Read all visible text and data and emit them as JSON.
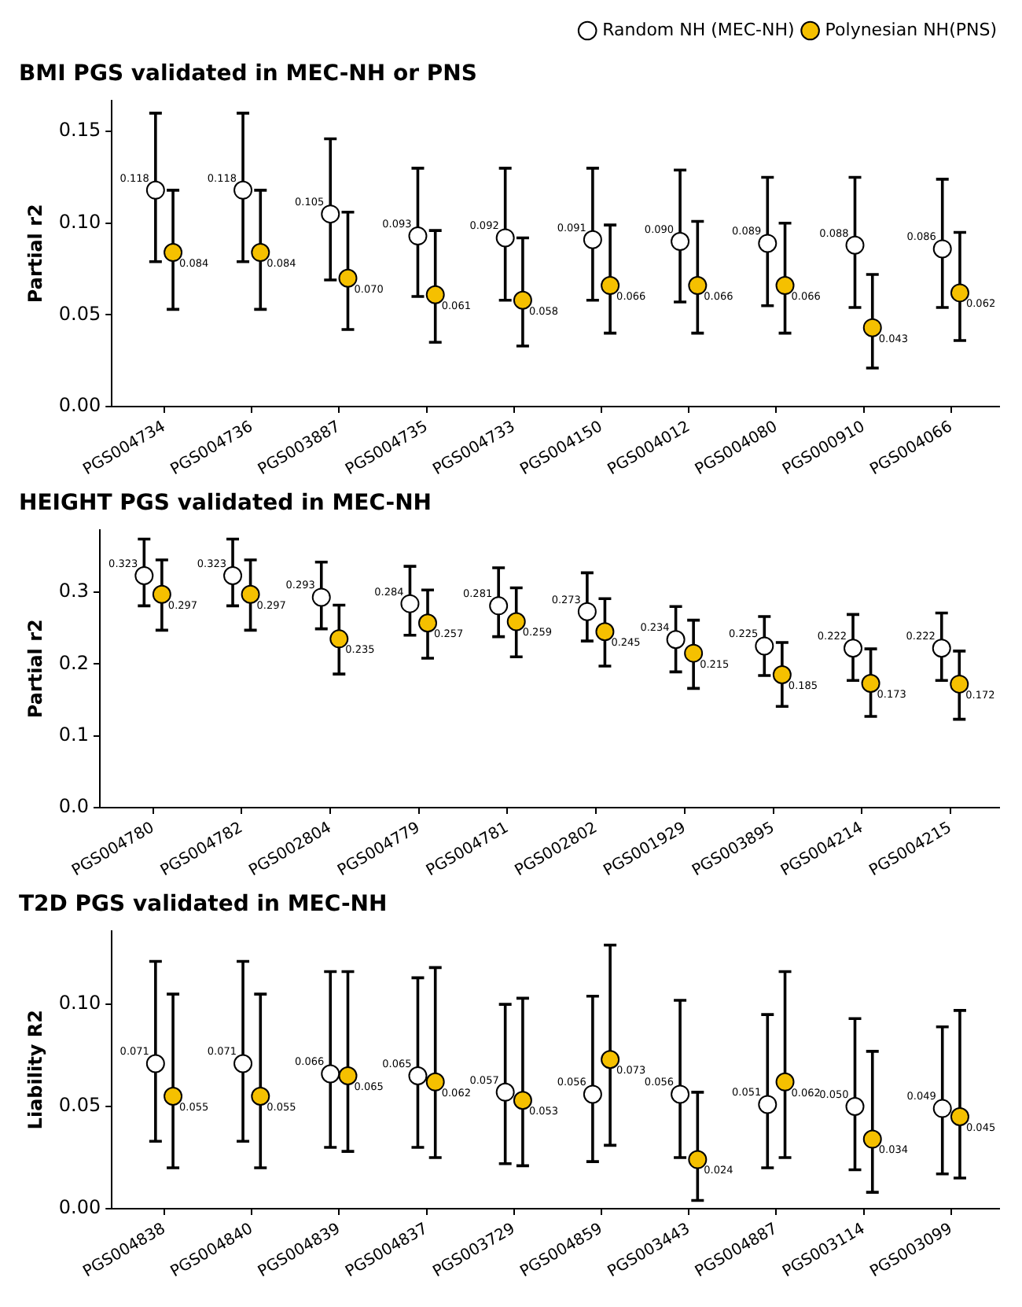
{
  "chart_data": [
    {
      "type": "scatter",
      "title": "BMI PGS validated in MEC-NH or PNS",
      "ylabel": "Partial r2",
      "legend": "top right",
      "grid": false,
      "marker": "circle",
      "categories": [
        "PGS004734",
        "PGS004736",
        "PGS003887",
        "PGS004735",
        "PGS004733",
        "PGS004150",
        "PGS004012",
        "PGS004080",
        "PGS000910",
        "PGS004066"
      ],
      "ylim": [
        0,
        0.167
      ],
      "yticks": [
        {
          "value": 0,
          "label": "0.00"
        },
        {
          "value": 0.05,
          "label": "0.05"
        },
        {
          "value": 0.1,
          "label": "0.10"
        },
        {
          "value": 0.15,
          "label": "0.15"
        }
      ],
      "series": [
        {
          "name": "Random NH (MEC-NH)",
          "color": "#ffffff",
          "values": [
            0.118,
            0.118,
            0.105,
            0.093,
            0.092,
            0.091,
            0.09,
            0.089,
            0.088,
            0.086
          ],
          "value_labels": [
            "0.118",
            "0.118",
            "0.105",
            "0.093",
            "0.092",
            "0.091",
            "0.090",
            "0.089",
            "0.088",
            "0.086"
          ],
          "errors": [
            [
              0.079,
              0.16
            ],
            [
              0.079,
              0.16
            ],
            [
              0.069,
              0.146
            ],
            [
              0.06,
              0.13
            ],
            [
              0.058,
              0.13
            ],
            [
              0.058,
              0.13
            ],
            [
              0.057,
              0.129
            ],
            [
              0.055,
              0.125
            ],
            [
              0.054,
              0.125
            ],
            [
              0.054,
              0.124
            ]
          ]
        },
        {
          "name": "Polynesian NH(PNS)",
          "color": "#f5c000",
          "values": [
            0.084,
            0.084,
            0.07,
            0.061,
            0.058,
            0.066,
            0.066,
            0.066,
            0.043,
            0.062
          ],
          "value_labels": [
            "0.084",
            "0.084",
            "0.070",
            "0.061",
            "0.058",
            "0.066",
            "0.066",
            "0.066",
            "0.043",
            "0.062"
          ],
          "errors": [
            [
              0.053,
              0.118
            ],
            [
              0.053,
              0.118
            ],
            [
              0.042,
              0.106
            ],
            [
              0.035,
              0.096
            ],
            [
              0.033,
              0.092
            ],
            [
              0.04,
              0.099
            ],
            [
              0.04,
              0.101
            ],
            [
              0.04,
              0.1
            ],
            [
              0.021,
              0.072
            ],
            [
              0.036,
              0.095
            ]
          ]
        }
      ]
    },
    {
      "type": "scatter",
      "title": "HEIGHT PGS validated in MEC-NH",
      "ylabel": "Partial r2",
      "grid": false,
      "marker": "circle",
      "categories": [
        "PGS004780",
        "PGS004782",
        "PGS002804",
        "PGS004779",
        "PGS004781",
        "PGS002802",
        "PGS001929",
        "PGS003895",
        "PGS004214",
        "PGS004215"
      ],
      "ylim": [
        0,
        0.387
      ],
      "yticks": [
        {
          "value": 0,
          "label": "0.0"
        },
        {
          "value": 0.1,
          "label": "0.1"
        },
        {
          "value": 0.2,
          "label": "0.2"
        },
        {
          "value": 0.3,
          "label": "0.3"
        }
      ],
      "series": [
        {
          "color": "#ffffff",
          "values": [
            0.323,
            0.323,
            0.293,
            0.284,
            0.281,
            0.273,
            0.234,
            0.225,
            0.222,
            0.222
          ],
          "value_labels": [
            "0.323",
            "0.323",
            "0.293",
            "0.284",
            "0.281",
            "0.273",
            "0.234",
            "0.225",
            "0.222",
            "0.222"
          ],
          "errors": [
            [
              0.281,
              0.374
            ],
            [
              0.281,
              0.374
            ],
            [
              0.249,
              0.342
            ],
            [
              0.24,
              0.336
            ],
            [
              0.238,
              0.334
            ],
            [
              0.232,
              0.327
            ],
            [
              0.189,
              0.28
            ],
            [
              0.184,
              0.266
            ],
            [
              0.177,
              0.269
            ],
            [
              0.177,
              0.271
            ]
          ]
        },
        {
          "color": "#f5c000",
          "values": [
            0.297,
            0.297,
            0.235,
            0.257,
            0.259,
            0.245,
            0.215,
            0.185,
            0.173,
            0.172
          ],
          "value_labels": [
            "0.297",
            "0.297",
            "0.235",
            "0.257",
            "0.259",
            "0.245",
            "0.215",
            "0.185",
            "0.173",
            "0.172"
          ],
          "errors": [
            [
              0.247,
              0.345
            ],
            [
              0.247,
              0.345
            ],
            [
              0.186,
              0.282
            ],
            [
              0.208,
              0.303
            ],
            [
              0.21,
              0.306
            ],
            [
              0.197,
              0.291
            ],
            [
              0.166,
              0.261
            ],
            [
              0.141,
              0.23
            ],
            [
              0.127,
              0.221
            ],
            [
              0.123,
              0.218
            ]
          ]
        }
      ]
    },
    {
      "type": "scatter",
      "title": "T2D PGS validated in MEC-NH",
      "ylabel": "Liability R2",
      "grid": false,
      "marker": "circle",
      "categories": [
        "PGS004838",
        "PGS004840",
        "PGS004839",
        "PGS004837",
        "PGS003729",
        "PGS004859",
        "PGS003443",
        "PGS004887",
        "PGS003114",
        "PGS003099"
      ],
      "ylim": [
        0,
        0.136
      ],
      "yticks": [
        {
          "value": 0,
          "label": "0.00"
        },
        {
          "value": 0.05,
          "label": "0.05"
        },
        {
          "value": 0.1,
          "label": "0.10"
        }
      ],
      "series": [
        {
          "color": "#ffffff",
          "values": [
            0.071,
            0.071,
            0.066,
            0.065,
            0.057,
            0.056,
            0.056,
            0.051,
            0.05,
            0.049
          ],
          "value_labels": [
            "0.071",
            "0.071",
            "0.066",
            "0.065",
            "0.057",
            "0.056",
            "0.056",
            "0.051",
            "0.050",
            "0.049"
          ],
          "errors": [
            [
              0.033,
              0.121
            ],
            [
              0.033,
              0.121
            ],
            [
              0.03,
              0.116
            ],
            [
              0.03,
              0.113
            ],
            [
              0.022,
              0.1
            ],
            [
              0.023,
              0.104
            ],
            [
              0.025,
              0.102
            ],
            [
              0.02,
              0.095
            ],
            [
              0.019,
              0.093
            ],
            [
              0.017,
              0.089
            ]
          ]
        },
        {
          "color": "#f5c000",
          "values": [
            0.055,
            0.055,
            0.065,
            0.062,
            0.053,
            0.073,
            0.024,
            0.062,
            0.034,
            0.045
          ],
          "value_labels": [
            "0.055",
            "0.055",
            "0.065",
            "0.062",
            "0.053",
            "0.073",
            "0.024",
            "0.062",
            "0.034",
            "0.045"
          ],
          "errors": [
            [
              0.02,
              0.105
            ],
            [
              0.02,
              0.105
            ],
            [
              0.028,
              0.116
            ],
            [
              0.025,
              0.118
            ],
            [
              0.021,
              0.103
            ],
            [
              0.031,
              0.129
            ],
            [
              0.004,
              0.057
            ],
            [
              0.025,
              0.116
            ],
            [
              0.008,
              0.077
            ],
            [
              0.015,
              0.097
            ]
          ]
        }
      ]
    }
  ]
}
